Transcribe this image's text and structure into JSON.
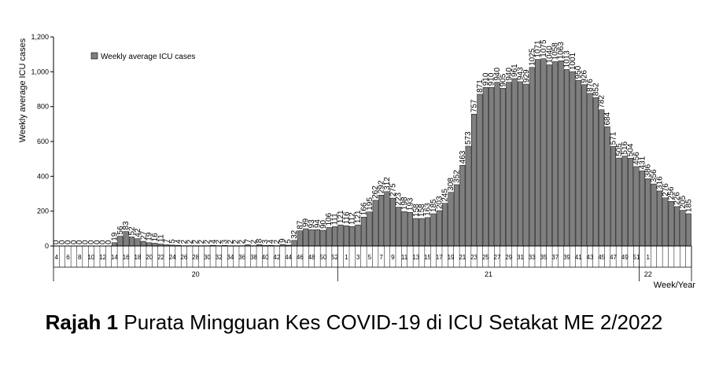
{
  "chart_data": {
    "type": "bar",
    "ylabel": "Weekly average ICU cases",
    "xlabel": "Week/Year",
    "legend": {
      "label": "Weekly average ICU cases",
      "position": "top-left"
    },
    "ylim": [
      0,
      1200
    ],
    "yticks": [
      "0",
      "200",
      "400",
      "600",
      "800",
      "1,000",
      "1,200"
    ],
    "bar_color": "#7f7f7f",
    "years": [
      {
        "label": "20",
        "start_index": 0,
        "end_index": 48
      },
      {
        "label": "21",
        "start_index": 49,
        "end_index": 100
      },
      {
        "label": "22",
        "start_index": 101,
        "end_index": 103
      }
    ],
    "x_tick_labels": [
      "4",
      "6",
      "8",
      "10",
      "12",
      "14",
      "16",
      "18",
      "20",
      "22",
      "24",
      "26",
      "28",
      "30",
      "32",
      "34",
      "36",
      "38",
      "40",
      "42",
      "44",
      "46",
      "48",
      "50",
      "52",
      "1",
      "3",
      "5",
      "7",
      "9",
      "11",
      "13",
      "15",
      "17",
      "19",
      "21",
      "23",
      "25",
      "27",
      "29",
      "31",
      "33",
      "35",
      "37",
      "39",
      "41",
      "43",
      "45",
      "47",
      "49",
      "51",
      "1"
    ],
    "values": [
      0,
      0,
      0,
      0,
      0,
      0,
      0,
      0,
      0,
      0,
      19,
      56,
      83,
      52,
      42,
      27,
      19,
      16,
      11,
      7,
      5,
      4,
      2,
      2,
      2,
      2,
      2,
      4,
      2,
      3,
      2,
      2,
      2,
      7,
      2,
      8,
      3,
      4,
      2,
      9,
      5,
      32,
      87,
      99,
      93,
      94,
      90,
      106,
      111,
      121,
      116,
      112,
      121,
      166,
      195,
      262,
      292,
      312,
      275,
      223,
      198,
      193,
      158,
      158,
      163,
      185,
      203,
      245,
      308,
      352,
      463,
      573,
      757,
      871,
      910,
      910,
      940,
      905,
      940,
      961,
      943,
      929,
      1025,
      1071,
      1075,
      1040,
      1058,
      1063,
      1013,
      1001,
      950,
      926,
      876,
      852,
      782,
      684,
      571,
      505,
      516,
      504,
      456,
      431,
      386,
      356,
      316,
      276,
      256,
      226,
      205,
      185
    ],
    "data_labels": [
      "0",
      "0",
      "0",
      "0",
      "0",
      "0",
      "0",
      "0",
      "0",
      "0",
      "19",
      "56",
      "83",
      "52",
      "42",
      "27",
      "19",
      "16",
      "11",
      "7",
      "5",
      "4",
      "2",
      "2",
      "2",
      "2",
      "2",
      "4",
      "2",
      "3",
      "2",
      "2",
      "2",
      "7",
      "2",
      "8",
      "3",
      "4",
      "2",
      "9",
      "5",
      "32",
      "87",
      "99",
      "93",
      "94",
      "90",
      "106",
      "111",
      "121",
      "116",
      "112",
      "121",
      "166",
      "195",
      "262",
      "292",
      "312",
      "275",
      "223",
      "198",
      "193",
      "158",
      "158",
      "163",
      "185",
      "203",
      "245",
      "308",
      "352",
      "463",
      "573",
      "757",
      "871",
      "910",
      "910",
      "940",
      "905",
      "940",
      "961",
      "943",
      "929",
      "1025",
      "1071",
      "1075",
      "1040",
      "1058",
      "1063",
      "1013",
      "1001",
      "950",
      "926",
      "876",
      "852",
      "782",
      "684",
      "571",
      "505",
      "516",
      "504",
      "456",
      "431",
      "386",
      "356",
      "316",
      "276",
      "256",
      "226",
      "205",
      "185"
    ]
  },
  "caption": {
    "bold": "Rajah 1",
    "text": " Purata Mingguan Kes COVID-19 di ICU Setakat ME 2/2022"
  }
}
